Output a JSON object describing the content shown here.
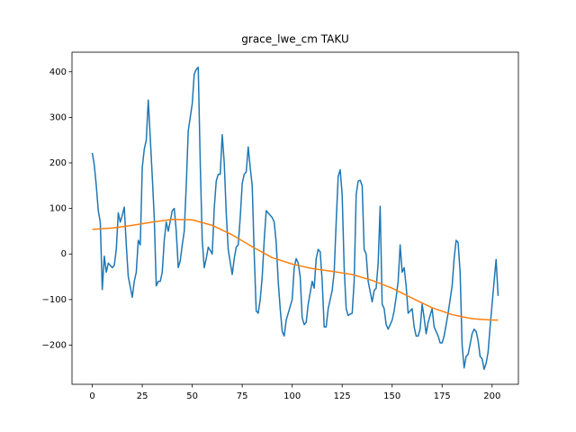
{
  "chart_data": {
    "type": "line",
    "title": "grace_lwe_cm TAKU",
    "xlim": [
      -10.15,
      213.15
    ],
    "ylim": [
      -286,
      443
    ],
    "xticks": [
      0,
      25,
      50,
      75,
      100,
      125,
      150,
      175,
      200
    ],
    "yticks": [
      {
        "value": -200,
        "label": "−200"
      },
      {
        "value": -100,
        "label": "−100"
      },
      0,
      100,
      200,
      300,
      400
    ],
    "grid": false,
    "series": [
      {
        "color": "#1f77b4",
        "x": [
          0,
          1,
          2,
          3,
          4,
          5,
          6,
          7,
          8,
          9,
          10,
          11,
          12,
          13,
          14,
          15,
          16,
          17,
          18,
          19,
          20,
          21,
          22,
          23,
          24,
          25,
          26,
          27,
          28,
          29,
          30,
          31,
          32,
          33,
          34,
          35,
          36,
          37,
          38,
          39,
          40,
          41,
          42,
          43,
          44,
          45,
          46,
          47,
          48,
          49,
          50,
          51,
          52,
          53,
          54,
          55,
          56,
          57,
          58,
          59,
          60,
          61,
          62,
          63,
          64,
          65,
          66,
          67,
          68,
          69,
          70,
          71,
          72,
          73,
          74,
          75,
          76,
          77,
          78,
          79,
          80,
          81,
          82,
          83,
          84,
          85,
          86,
          87,
          88,
          89,
          90,
          91,
          92,
          93,
          94,
          95,
          96,
          97,
          98,
          99,
          100,
          101,
          102,
          103,
          104,
          105,
          106,
          107,
          108,
          109,
          110,
          111,
          112,
          113,
          114,
          115,
          116,
          117,
          118,
          119,
          120,
          121,
          122,
          123,
          124,
          125,
          126,
          127,
          128,
          129,
          130,
          131,
          132,
          133,
          134,
          135,
          136,
          137,
          138,
          139,
          140,
          141,
          142,
          143,
          144,
          145,
          146,
          147,
          148,
          149,
          150,
          151,
          152,
          153,
          154,
          155,
          156,
          157,
          158,
          159,
          160,
          161,
          162,
          163,
          164,
          165,
          166,
          167,
          168,
          169,
          170,
          171,
          172,
          173,
          174,
          175,
          176,
          177,
          178,
          179,
          180,
          181,
          182,
          183,
          184,
          185,
          186,
          187,
          188,
          189,
          190,
          191,
          192,
          193,
          194,
          195,
          196,
          197,
          198,
          199,
          200,
          201,
          202,
          203
        ],
        "values": [
          222,
          195,
          150,
          95,
          70,
          -78,
          -5,
          -40,
          -20,
          -25,
          -30,
          -25,
          10,
          90,
          70,
          85,
          103,
          20,
          -50,
          -72,
          -95,
          -60,
          -40,
          30,
          20,
          190,
          230,
          250,
          338,
          255,
          170,
          80,
          -70,
          -60,
          -60,
          -40,
          30,
          70,
          50,
          72,
          95,
          100,
          50,
          -30,
          -15,
          20,
          50,
          150,
          270,
          300,
          330,
          395,
          405,
          410,
          200,
          30,
          -30,
          -10,
          15,
          8,
          0,
          100,
          160,
          175,
          175,
          262,
          200,
          90,
          10,
          -18,
          -45,
          -10,
          15,
          20,
          80,
          155,
          175,
          180,
          235,
          190,
          150,
          0,
          -125,
          -130,
          -100,
          -50,
          30,
          95,
          90,
          85,
          80,
          70,
          25,
          -60,
          -120,
          -170,
          -180,
          -145,
          -130,
          -115,
          -100,
          -30,
          -10,
          -20,
          -50,
          -140,
          -155,
          -150,
          -110,
          -85,
          -60,
          -75,
          -10,
          10,
          5,
          -60,
          -160,
          -160,
          -120,
          -100,
          -80,
          -40,
          70,
          170,
          185,
          130,
          -30,
          -120,
          -135,
          -132,
          -130,
          -60,
          130,
          160,
          162,
          150,
          10,
          0,
          -60,
          -82,
          -105,
          -80,
          -75,
          -20,
          105,
          -110,
          -120,
          -155,
          -165,
          -155,
          -145,
          -125,
          -95,
          -60,
          20,
          -40,
          -30,
          -70,
          -130,
          -125,
          -120,
          -160,
          -180,
          -180,
          -165,
          -110,
          -140,
          -175,
          -150,
          -135,
          -120,
          -160,
          -170,
          -180,
          -195,
          -195,
          -180,
          -155,
          -130,
          -100,
          -70,
          -10,
          30,
          25,
          -40,
          -200,
          -250,
          -225,
          -220,
          -198,
          -175,
          -165,
          -170,
          -190,
          -225,
          -230,
          -253,
          -240,
          -215,
          -160,
          -110,
          -60,
          -12,
          -92
        ]
      },
      {
        "color": "#ff7f0e",
        "x": [
          0,
          10,
          20,
          30,
          40,
          50,
          60,
          70,
          80,
          90,
          100,
          110,
          120,
          130,
          140,
          150,
          160,
          170,
          180,
          190,
          200,
          203
        ],
        "values": [
          54,
          57,
          63,
          70,
          76,
          75,
          63,
          42,
          16,
          -8,
          -22,
          -32,
          -38,
          -45,
          -58,
          -75,
          -97,
          -118,
          -133,
          -142,
          -145,
          -145
        ]
      }
    ]
  }
}
